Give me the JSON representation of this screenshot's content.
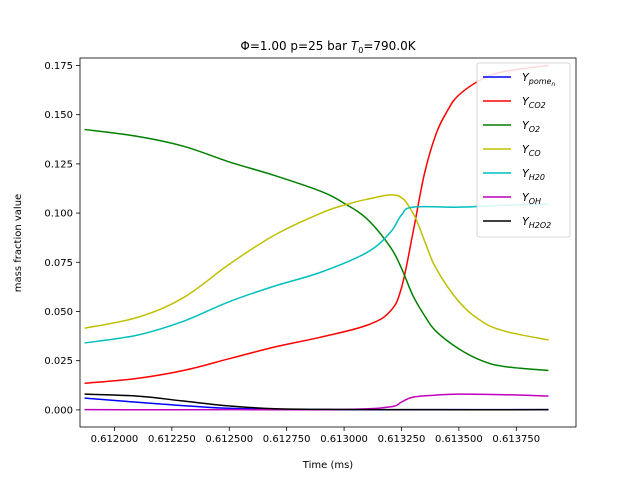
{
  "chart_data": {
    "type": "line",
    "title": {
      "prefix": "Φ=1.00 p=25 bar ",
      "var": "T",
      "var_sub": "0",
      "suffix": "=790.0K"
    },
    "xlabel": "Time (ms)",
    "ylabel": "mass fraction value",
    "xlim": [
      0.61185,
      0.61401
    ],
    "ylim": [
      -0.0087,
      0.1788
    ],
    "xticks": [
      0.612,
      0.61225,
      0.6125,
      0.61275,
      0.613,
      0.61325,
      0.6135,
      0.61375
    ],
    "xtick_labels": [
      "0.612000",
      "0.612250",
      "0.612500",
      "0.612750",
      "0.613000",
      "0.613250",
      "0.613500",
      "0.613750"
    ],
    "yticks": [
      0.0,
      0.025,
      0.05,
      0.075,
      0.1,
      0.125,
      0.15,
      0.175
    ],
    "ytick_labels": [
      "0.000",
      "0.025",
      "0.050",
      "0.075",
      "0.100",
      "0.125",
      "0.150",
      "0.175"
    ],
    "legend_position": "top-right",
    "grid": false,
    "series": [
      {
        "name": "Y",
        "sub": "pome",
        "subsub": "n",
        "color": "#0000ff",
        "x": [
          0.61187,
          0.6122,
          0.6125,
          0.6128,
          0.6131,
          0.6134,
          0.61389
        ],
        "y": [
          0.006,
          0.003,
          0.0008,
          0.0002,
          0.0001,
          0.0001,
          0.0001
        ]
      },
      {
        "name": "Y",
        "sub": "CO2",
        "subsub": "",
        "color": "#ff0000",
        "x": [
          0.61187,
          0.6121,
          0.6123,
          0.6125,
          0.6127,
          0.6129,
          0.6131,
          0.6132,
          0.61325,
          0.6133,
          0.61335,
          0.6134,
          0.61345,
          0.6135,
          0.6136,
          0.6137,
          0.61389
        ],
        "y": [
          0.0135,
          0.016,
          0.02,
          0.026,
          0.032,
          0.037,
          0.043,
          0.05,
          0.062,
          0.09,
          0.12,
          0.14,
          0.152,
          0.16,
          0.168,
          0.172,
          0.175
        ]
      },
      {
        "name": "Y",
        "sub": "O2",
        "subsub": "",
        "color": "#008000",
        "x": [
          0.61187,
          0.6121,
          0.6123,
          0.6125,
          0.6127,
          0.6129,
          0.613,
          0.6131,
          0.6132,
          0.61325,
          0.6133,
          0.61335,
          0.6134,
          0.6135,
          0.6136,
          0.6137,
          0.61389
        ],
        "y": [
          0.1425,
          0.139,
          0.134,
          0.126,
          0.119,
          0.111,
          0.105,
          0.097,
          0.083,
          0.072,
          0.058,
          0.048,
          0.04,
          0.031,
          0.025,
          0.022,
          0.02
        ]
      },
      {
        "name": "Y",
        "sub": "CO",
        "subsub": "",
        "color": "#bfbf00",
        "x": [
          0.61187,
          0.6121,
          0.6123,
          0.6125,
          0.6127,
          0.6129,
          0.613,
          0.6131,
          0.61323,
          0.6133,
          0.61335,
          0.6134,
          0.6135,
          0.6136,
          0.6137,
          0.61389
        ],
        "y": [
          0.0415,
          0.047,
          0.057,
          0.074,
          0.089,
          0.1,
          0.104,
          0.107,
          0.109,
          0.1,
          0.086,
          0.072,
          0.055,
          0.045,
          0.04,
          0.0355
        ]
      },
      {
        "name": "Y",
        "sub": "H20",
        "subsub": "",
        "color": "#00bfbf",
        "x": [
          0.61187,
          0.6121,
          0.6123,
          0.6125,
          0.6127,
          0.6129,
          0.6131,
          0.6132,
          0.61325,
          0.6133,
          0.6135,
          0.6137,
          0.61389
        ],
        "y": [
          0.034,
          0.038,
          0.045,
          0.055,
          0.063,
          0.07,
          0.08,
          0.09,
          0.099,
          0.103,
          0.103,
          0.104,
          0.1045
        ]
      },
      {
        "name": "Y",
        "sub": "OH",
        "subsub": "",
        "color": "#bf00bf",
        "x": [
          0.61187,
          0.6125,
          0.613,
          0.6132,
          0.61325,
          0.6133,
          0.6134,
          0.6135,
          0.6137,
          0.61389
        ],
        "y": [
          0.0001,
          0.0001,
          0.0002,
          0.0015,
          0.004,
          0.0065,
          0.0075,
          0.008,
          0.0077,
          0.007
        ]
      },
      {
        "name": "Y",
        "sub": "H2O2",
        "subsub": "",
        "color": "#000000",
        "x": [
          0.61187,
          0.6121,
          0.6123,
          0.6125,
          0.6127,
          0.613,
          0.6133,
          0.61389
        ],
        "y": [
          0.008,
          0.007,
          0.0045,
          0.002,
          0.0006,
          0.0002,
          0.0001,
          0.0001
        ]
      }
    ]
  }
}
